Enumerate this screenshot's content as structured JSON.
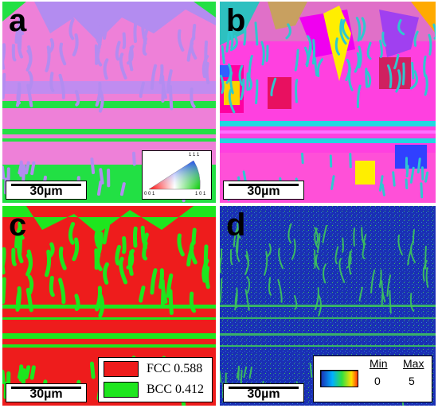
{
  "panels": [
    {
      "label": "a",
      "scale_bar": "30µm",
      "ipf_key": {
        "top": "1 1 1",
        "bottom_left": "0 0 1",
        "bottom_right": "1 0 1"
      }
    },
    {
      "label": "b",
      "scale_bar": "30µm"
    },
    {
      "label": "c",
      "scale_bar": "30µm",
      "legend": [
        {
          "text": "FCC 0.588",
          "color": "#ee1c1c"
        },
        {
          "text": "BCC 0.412",
          "color": "#1ee61e"
        }
      ]
    },
    {
      "label": "d",
      "scale_bar": "30µm",
      "legend": {
        "min_label": "Min",
        "max_label": "Max",
        "min_value": "0",
        "max_value": "5"
      }
    }
  ],
  "colors": {
    "ipf_pink": "#ee80d8",
    "ipf_lilac": "#b38cf0",
    "ipf_green": "#22e044",
    "phase_red": "#ee1c1c",
    "phase_green": "#1ee61e",
    "kam_blue": "#1a2fb4",
    "kam_green": "#3ec85a"
  }
}
